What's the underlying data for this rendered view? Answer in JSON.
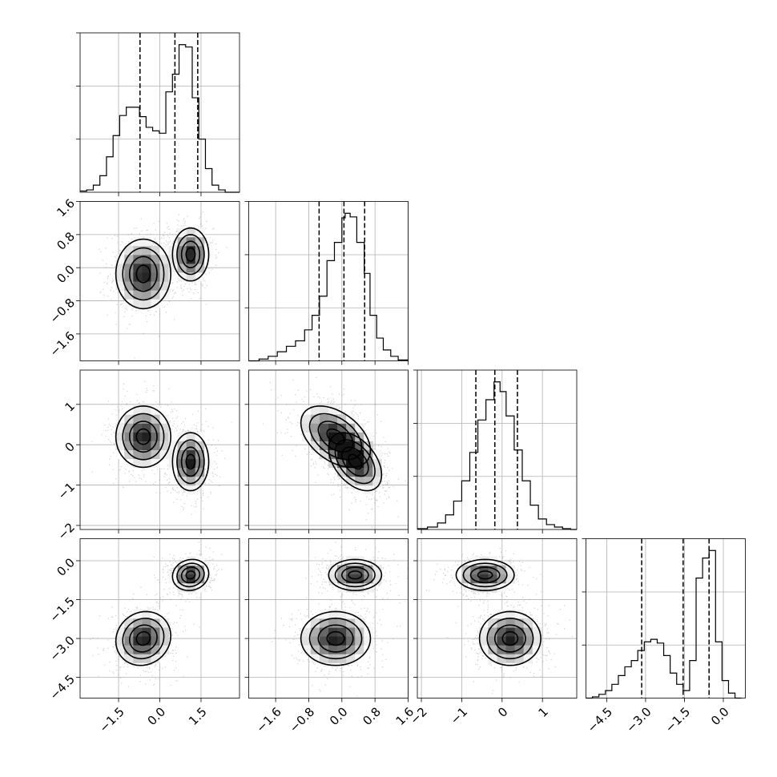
{
  "chart_data": {
    "type": "corner",
    "parameters": [
      {
        "range": [
          -2.9,
          2.9
        ],
        "tick_values": [
          -1.5,
          0.0,
          1.5
        ],
        "tick_labels": [
          "−1.5",
          "0.0",
          "1.5"
        ],
        "quantiles": [
          -0.72,
          0.55,
          1.38
        ],
        "hist": {
          "bins": [
            -2.9,
            -2.66,
            -2.42,
            -2.18,
            -1.94,
            -1.7,
            -1.46,
            -1.22,
            -0.98,
            -0.74,
            -0.5,
            -0.26,
            -0.02,
            0.22,
            0.46,
            0.7,
            0.94,
            1.18,
            1.42,
            1.66,
            1.9,
            2.14,
            2.38,
            2.62,
            2.9
          ],
          "counts": [
            1,
            2,
            6,
            14,
            30,
            48,
            65,
            72,
            72,
            64,
            55,
            52,
            50,
            85,
            100,
            125,
            123,
            80,
            45,
            20,
            6,
            2,
            0,
            0
          ]
        }
      },
      {
        "range": [
          -2.25,
          1.6
        ],
        "tick_values": [
          -1.6,
          -0.8,
          0.0,
          0.8,
          1.6
        ],
        "tick_labels": [
          "−1.6",
          "−0.8",
          "0.0",
          "0.8",
          "1.6"
        ],
        "quantiles": [
          -0.55,
          0.05,
          0.55
        ],
        "hist": {
          "bins": [
            -2.25,
            -2.0,
            -1.78,
            -1.56,
            -1.34,
            -1.12,
            -0.9,
            -0.72,
            -0.54,
            -0.36,
            -0.18,
            0.0,
            0.08,
            0.2,
            0.36,
            0.54,
            0.68,
            0.84,
            1.0,
            1.18,
            1.36,
            1.6
          ],
          "counts": [
            0,
            2,
            5,
            10,
            16,
            22,
            34,
            50,
            71,
            110,
            130,
            157,
            162,
            158,
            130,
            96,
            50,
            25,
            12,
            5,
            1
          ]
        }
      },
      {
        "range": [
          -2.1,
          1.85
        ],
        "tick_values": [
          -2,
          -1,
          0,
          1
        ],
        "tick_labels": [
          "−2",
          "−1",
          "0",
          "1"
        ],
        "quantiles": [
          -0.65,
          -0.18,
          0.38
        ],
        "hist": {
          "bins": [
            -2.1,
            -1.85,
            -1.6,
            -1.4,
            -1.2,
            -1.0,
            -0.8,
            -0.6,
            -0.4,
            -0.2,
            -0.05,
            0.1,
            0.3,
            0.5,
            0.7,
            0.9,
            1.1,
            1.3,
            1.5,
            1.7,
            1.85
          ],
          "counts": [
            1,
            3,
            8,
            18,
            35,
            60,
            95,
            135,
            160,
            182,
            170,
            140,
            98,
            60,
            30,
            13,
            6,
            3,
            1,
            0
          ]
        }
      },
      {
        "range": [
          -5.3,
          0.85
        ],
        "tick_values": [
          -4.5,
          -3.0,
          -1.5,
          0.0
        ],
        "tick_labels": [
          "−4.5",
          "−3.0",
          "−1.5",
          "0.0"
        ],
        "quantiles": [
          -3.15,
          -1.55,
          -0.55
        ],
        "hist": {
          "bins": [
            -5.3,
            -5.05,
            -4.8,
            -4.55,
            -4.3,
            -4.05,
            -3.8,
            -3.55,
            -3.3,
            -3.05,
            -2.8,
            -2.55,
            -2.3,
            -2.05,
            -1.8,
            -1.55,
            -1.3,
            -1.05,
            -0.8,
            -0.55,
            -0.3,
            -0.05,
            0.2,
            0.45,
            0.7
          ],
          "counts": [
            0,
            1,
            3,
            6,
            11,
            18,
            25,
            30,
            38,
            45,
            47,
            44,
            34,
            20,
            11,
            6,
            30,
            96,
            112,
            118,
            45,
            14,
            4,
            0
          ]
        }
      }
    ],
    "clusters": [
      {
        "means": [
          -0.6,
          -0.15,
          0.2,
          -3.0
        ],
        "sds": [
          0.5,
          0.42,
          0.38,
          0.52
        ]
      },
      {
        "means": [
          1.12,
          0.32,
          -0.42,
          -0.55
        ],
        "sds": [
          0.33,
          0.32,
          0.36,
          0.3
        ]
      }
    ],
    "density_levels": [
      0.1353,
      0.3247,
      0.6065,
      0.8825
    ],
    "density_shading": "white to black",
    "grid": true,
    "title": "",
    "xlabel": "",
    "ylabel": ""
  }
}
